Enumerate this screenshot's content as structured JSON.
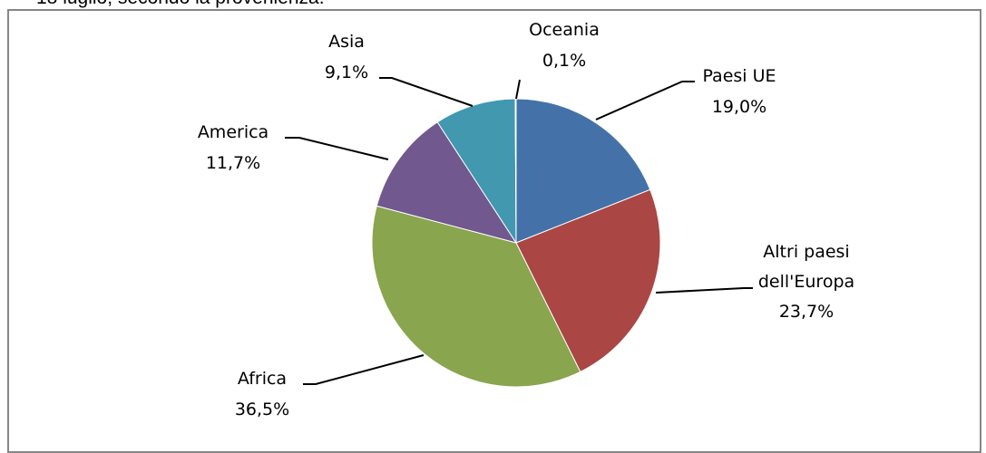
{
  "caption": "18 luglio, secondo la provenienza.",
  "chart_data": {
    "type": "pie",
    "title": "",
    "slices": [
      {
        "label": "Paesi UE",
        "value": 19.0,
        "value_label": "19,0%",
        "color": "#4472a8"
      },
      {
        "label": "Altri paesi dell'Europa",
        "value": 23.7,
        "value_label": "23,7%",
        "color": "#aa4644"
      },
      {
        "label": "Africa",
        "value": 36.5,
        "value_label": "36,5%",
        "color": "#89a54e"
      },
      {
        "label": "America",
        "value": 11.7,
        "value_label": "11,7%",
        "color": "#71588f"
      },
      {
        "label": "Asia",
        "value": 9.1,
        "value_label": "9,1%",
        "color": "#4198af"
      },
      {
        "label": "Oceania",
        "value": 0.1,
        "value_label": "0,1%",
        "color": "#db843d"
      }
    ],
    "start": "12 o'clock",
    "direction": "clockwise",
    "legend": "none"
  }
}
